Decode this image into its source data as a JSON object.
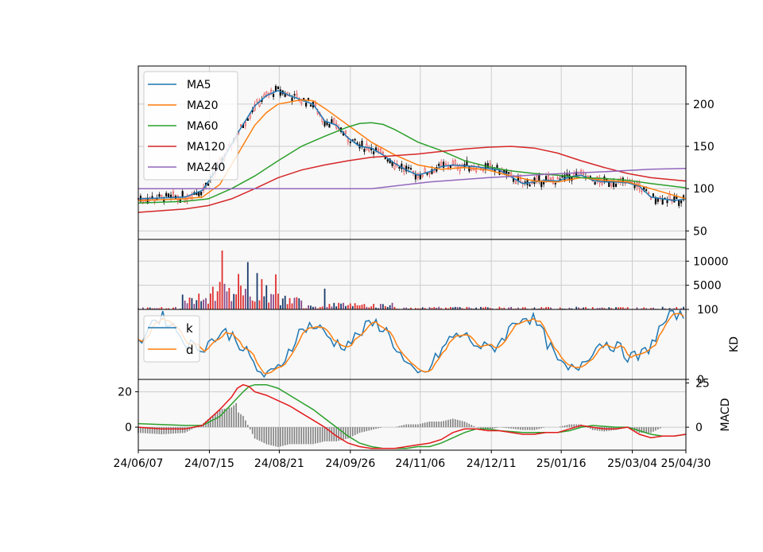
{
  "chart_data": {
    "type": "stock-candlestick",
    "x_ticks": [
      "24/06/07",
      "24/07/15",
      "24/08/21",
      "24/09/26",
      "24/11/06",
      "24/12/11",
      "25/01/16",
      "25/03/04",
      "25/04/30"
    ],
    "price_panel": {
      "ylim": [
        40,
        245
      ],
      "yticks": [
        50,
        100,
        150,
        200
      ],
      "grid": true,
      "legend_position": "top-left",
      "legend": [
        {
          "name": "MA5",
          "color": "#1f77b4"
        },
        {
          "name": "MA20",
          "color": "#ff7f0e"
        },
        {
          "name": "MA60",
          "color": "#2ca02c"
        },
        {
          "name": "MA120",
          "color": "#d62728"
        },
        {
          "name": "MA240",
          "color": "#9467bd"
        }
      ],
      "ma_series": {
        "MA5": [
          [
            0,
            88
          ],
          [
            20,
            89
          ],
          [
            40,
            90
          ],
          [
            55,
            98
          ],
          [
            70,
            128
          ],
          [
            85,
            165
          ],
          [
            100,
            198
          ],
          [
            110,
            210
          ],
          [
            120,
            216
          ],
          [
            130,
            210
          ],
          [
            140,
            205
          ],
          [
            150,
            200
          ],
          [
            160,
            180
          ],
          [
            170,
            175
          ],
          [
            180,
            160
          ],
          [
            190,
            150
          ],
          [
            200,
            148
          ],
          [
            210,
            140
          ],
          [
            220,
            130
          ],
          [
            230,
            122
          ],
          [
            240,
            116
          ],
          [
            250,
            120
          ],
          [
            260,
            126
          ],
          [
            270,
            128
          ],
          [
            280,
            127
          ],
          [
            290,
            126
          ],
          [
            300,
            124
          ],
          [
            310,
            122
          ],
          [
            320,
            114
          ],
          [
            330,
            106
          ],
          [
            340,
            108
          ],
          [
            350,
            110
          ],
          [
            360,
            109
          ],
          [
            370,
            114
          ],
          [
            380,
            116
          ],
          [
            390,
            110
          ],
          [
            400,
            108
          ],
          [
            410,
            108
          ],
          [
            420,
            107
          ],
          [
            430,
            103
          ],
          [
            440,
            90
          ],
          [
            450,
            88
          ],
          [
            460,
            86
          ],
          [
            470,
            88
          ]
        ],
        "MA20": [
          [
            0,
            86
          ],
          [
            40,
            88
          ],
          [
            55,
            90
          ],
          [
            70,
            105
          ],
          [
            85,
            140
          ],
          [
            100,
            175
          ],
          [
            110,
            190
          ],
          [
            120,
            200
          ],
          [
            140,
            205
          ],
          [
            150,
            204
          ],
          [
            160,
            195
          ],
          [
            180,
            175
          ],
          [
            200,
            155
          ],
          [
            220,
            140
          ],
          [
            240,
            128
          ],
          [
            260,
            123
          ],
          [
            280,
            125
          ],
          [
            300,
            122
          ],
          [
            320,
            115
          ],
          [
            340,
            109
          ],
          [
            360,
            108
          ],
          [
            380,
            113
          ],
          [
            400,
            110
          ],
          [
            420,
            108
          ],
          [
            440,
            100
          ],
          [
            460,
            92
          ],
          [
            470,
            88
          ]
        ],
        "MA60": [
          [
            0,
            83
          ],
          [
            40,
            85
          ],
          [
            60,
            88
          ],
          [
            80,
            100
          ],
          [
            100,
            115
          ],
          [
            120,
            133
          ],
          [
            140,
            150
          ],
          [
            160,
            162
          ],
          [
            180,
            173
          ],
          [
            190,
            177
          ],
          [
            200,
            178
          ],
          [
            210,
            176
          ],
          [
            220,
            170
          ],
          [
            240,
            155
          ],
          [
            260,
            145
          ],
          [
            280,
            133
          ],
          [
            300,
            126
          ],
          [
            320,
            121
          ],
          [
            340,
            118
          ],
          [
            360,
            116
          ],
          [
            380,
            113
          ],
          [
            400,
            112
          ],
          [
            420,
            110
          ],
          [
            440,
            106
          ],
          [
            470,
            101
          ]
        ],
        "MA120": [
          [
            0,
            72
          ],
          [
            40,
            76
          ],
          [
            60,
            80
          ],
          [
            80,
            88
          ],
          [
            100,
            100
          ],
          [
            120,
            113
          ],
          [
            140,
            122
          ],
          [
            160,
            128
          ],
          [
            180,
            133
          ],
          [
            200,
            137
          ],
          [
            220,
            139
          ],
          [
            240,
            141
          ],
          [
            260,
            144
          ],
          [
            280,
            147
          ],
          [
            300,
            149
          ],
          [
            320,
            150
          ],
          [
            340,
            148
          ],
          [
            360,
            142
          ],
          [
            380,
            133
          ],
          [
            400,
            125
          ],
          [
            420,
            118
          ],
          [
            440,
            113
          ],
          [
            470,
            109
          ]
        ],
        "MA240": [
          [
            0,
            100
          ],
          [
            200,
            100
          ],
          [
            250,
            108
          ],
          [
            300,
            113
          ],
          [
            350,
            117
          ],
          [
            400,
            120
          ],
          [
            440,
            123
          ],
          [
            470,
            124
          ]
        ]
      }
    },
    "volume_panel": {
      "ylim": [
        0,
        14500
      ],
      "yticks": [
        5000,
        10000
      ],
      "grid": true
    },
    "kd_panel": {
      "ylabel": "KD",
      "ylim": [
        0,
        100
      ],
      "yticks": [
        0,
        100
      ],
      "grid": true,
      "legend_position": "top-left",
      "legend": [
        {
          "name": "k",
          "color": "#1f77b4"
        },
        {
          "name": "d",
          "color": "#ff7f0e"
        }
      ]
    },
    "macd_panel": {
      "ylabel": "MACD",
      "left_ylim": [
        -13,
        27
      ],
      "left_yticks": [
        0,
        20
      ],
      "right_ylim": [
        -13,
        27
      ],
      "right_yticks": [
        0,
        25
      ],
      "grid": true,
      "dif_color": "#e41a1c",
      "macd_color": "#2ca02c",
      "hist_color": "#808080",
      "dif_series": [
        [
          0,
          0
        ],
        [
          20,
          -1
        ],
        [
          40,
          -1
        ],
        [
          55,
          1
        ],
        [
          70,
          10
        ],
        [
          80,
          17
        ],
        [
          85,
          22
        ],
        [
          90,
          24
        ],
        [
          95,
          23
        ],
        [
          100,
          20
        ],
        [
          110,
          18
        ],
        [
          120,
          15
        ],
        [
          130,
          12
        ],
        [
          140,
          8
        ],
        [
          150,
          4
        ],
        [
          160,
          0
        ],
        [
          170,
          -5
        ],
        [
          180,
          -9
        ],
        [
          190,
          -11
        ],
        [
          200,
          -12
        ],
        [
          210,
          -12
        ],
        [
          220,
          -12
        ],
        [
          230,
          -11
        ],
        [
          240,
          -10
        ],
        [
          250,
          -9
        ],
        [
          260,
          -7
        ],
        [
          270,
          -3
        ],
        [
          280,
          -1
        ],
        [
          290,
          -1
        ],
        [
          300,
          -2
        ],
        [
          310,
          -2
        ],
        [
          320,
          -3
        ],
        [
          330,
          -4
        ],
        [
          340,
          -4
        ],
        [
          350,
          -3
        ],
        [
          360,
          -3
        ],
        [
          370,
          -1
        ],
        [
          380,
          1
        ],
        [
          390,
          0
        ],
        [
          400,
          -1
        ],
        [
          410,
          -1
        ],
        [
          420,
          0
        ],
        [
          430,
          -4
        ],
        [
          440,
          -6
        ],
        [
          450,
          -5
        ],
        [
          460,
          -5
        ],
        [
          470,
          -4
        ]
      ],
      "macd_series": [
        [
          0,
          2
        ],
        [
          40,
          1
        ],
        [
          55,
          1
        ],
        [
          70,
          6
        ],
        [
          80,
          13
        ],
        [
          90,
          20
        ],
        [
          95,
          23
        ],
        [
          100,
          24
        ],
        [
          110,
          24
        ],
        [
          120,
          22
        ],
        [
          130,
          18
        ],
        [
          140,
          14
        ],
        [
          150,
          10
        ],
        [
          160,
          5
        ],
        [
          170,
          0
        ],
        [
          180,
          -5
        ],
        [
          190,
          -9
        ],
        [
          200,
          -11
        ],
        [
          210,
          -12
        ],
        [
          230,
          -12
        ],
        [
          240,
          -11
        ],
        [
          250,
          -11
        ],
        [
          260,
          -9
        ],
        [
          270,
          -6
        ],
        [
          280,
          -3
        ],
        [
          290,
          -1
        ],
        [
          300,
          -1
        ],
        [
          310,
          -2
        ],
        [
          330,
          -3
        ],
        [
          340,
          -3
        ],
        [
          350,
          -3
        ],
        [
          360,
          -3
        ],
        [
          370,
          -2
        ],
        [
          380,
          0
        ],
        [
          390,
          1
        ],
        [
          410,
          0
        ],
        [
          420,
          0
        ],
        [
          430,
          -2
        ],
        [
          440,
          -4
        ],
        [
          450,
          -5
        ],
        [
          460,
          -5
        ],
        [
          470,
          -4
        ]
      ]
    },
    "n_bars": 470
  }
}
